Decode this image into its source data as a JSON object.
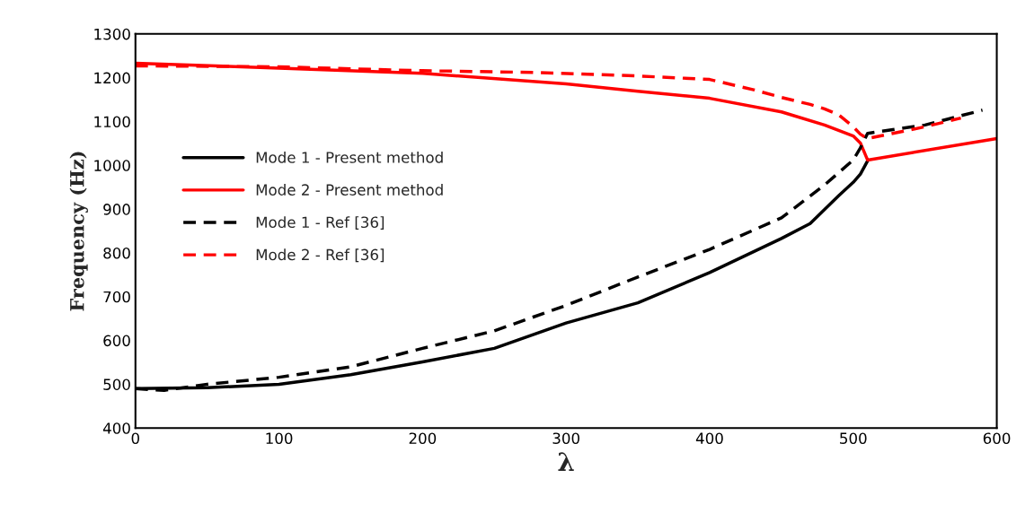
{
  "chart_data": {
    "type": "line",
    "xlabel": "λ",
    "ylabel": "Frequency (Hz)",
    "xlim": [
      0,
      600
    ],
    "ylim": [
      400,
      1300
    ],
    "xticks": [
      0,
      100,
      200,
      300,
      400,
      500,
      600
    ],
    "yticks": [
      400,
      500,
      600,
      700,
      800,
      900,
      1000,
      1100,
      1200,
      1300
    ],
    "grid": false,
    "legend": "center left",
    "marker": "none",
    "series": [
      {
        "name": "Mode 1 - Present method",
        "color": "#000000",
        "line_style": "solid",
        "x": [
          0,
          50,
          100,
          150,
          200,
          250,
          300,
          350,
          400,
          450,
          470,
          490,
          500,
          505,
          510
        ],
        "values": [
          490,
          492,
          500,
          522,
          551,
          582,
          640,
          686,
          755,
          833,
          867,
          931,
          961,
          980,
          1010
        ]
      },
      {
        "name": "Mode 2 - Present method",
        "color": "#ff0000",
        "line_style": "solid",
        "x": [
          0,
          100,
          200,
          300,
          350,
          400,
          450,
          480,
          500,
          505,
          510,
          600
        ],
        "values": [
          1233,
          1222,
          1210,
          1186,
          1169,
          1153,
          1122,
          1092,
          1067,
          1051,
          1012,
          1061
        ]
      },
      {
        "name": "Mode 1 - Ref [36]",
        "color": "#000000",
        "line_style": "dashed",
        "x": [
          0,
          20,
          50,
          100,
          150,
          200,
          250,
          300,
          350,
          400,
          450,
          480,
          500,
          505,
          510,
          550,
          590
        ],
        "values": [
          490,
          486,
          500,
          516,
          540,
          582,
          622,
          680,
          745,
          808,
          880,
          955,
          1012,
          1040,
          1073,
          1092,
          1126
        ]
      },
      {
        "name": "Mode 2 - Ref [36]",
        "color": "#ff0000",
        "line_style": "dashed",
        "x": [
          0,
          100,
          200,
          280,
          350,
          400,
          430,
          450,
          470,
          480,
          490,
          500,
          505,
          510,
          550,
          575
        ],
        "values": [
          1227,
          1225,
          1216,
          1212,
          1204,
          1196,
          1173,
          1155,
          1139,
          1129,
          1115,
          1088,
          1071,
          1061,
          1088,
          1108
        ]
      }
    ]
  }
}
